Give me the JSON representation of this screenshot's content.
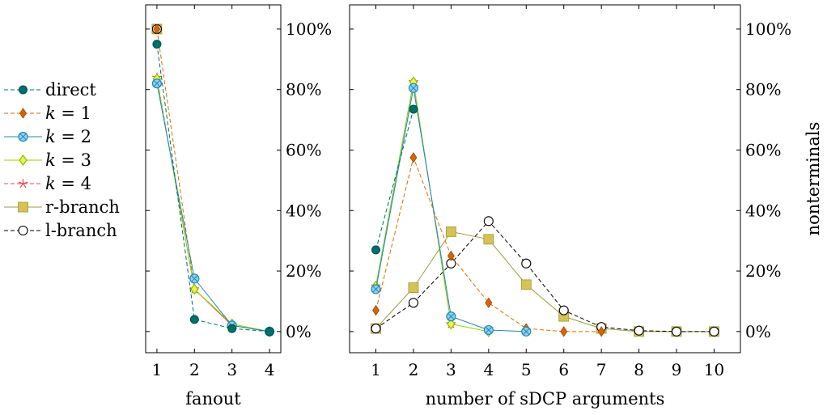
{
  "chart_data": [
    {
      "type": "line",
      "xlabel": "fanout",
      "ylabel": "",
      "x_ticks": [
        "1",
        "2",
        "3",
        "4"
      ],
      "y_ticks": [
        "0%",
        "20%",
        "40%",
        "60%",
        "80%",
        "100%"
      ],
      "xlim": [
        0.7,
        4.3
      ],
      "ylim": [
        -0.07,
        1.08
      ],
      "grid": false,
      "series": [
        {
          "name": "direct",
          "x": [
            1,
            2,
            3,
            4
          ],
          "y": [
            0.95,
            0.04,
            0.01,
            0.0
          ]
        },
        {
          "name": "k = 1",
          "x": [
            1,
            2,
            3,
            4
          ],
          "y": [
            1.0,
            0.14,
            0.02,
            0.0
          ]
        },
        {
          "name": "k = 2",
          "x": [
            1,
            2,
            3,
            4
          ],
          "y": [
            0.82,
            0.175,
            0.02,
            0.0
          ]
        },
        {
          "name": "k = 3",
          "x": [
            1,
            2,
            3,
            4
          ],
          "y": [
            0.835,
            0.14,
            0.025,
            0.0
          ]
        },
        {
          "name": "k = 4",
          "x": [
            1,
            2,
            3,
            4
          ],
          "y": [
            0.84,
            0.14,
            0.02,
            0.0
          ]
        },
        {
          "name": "r-branch",
          "x": [
            1
          ],
          "y": [
            1.0
          ]
        },
        {
          "name": "l-branch",
          "x": [
            1
          ],
          "y": [
            1.0
          ]
        }
      ]
    },
    {
      "type": "line",
      "xlabel": "number of sDCP arguments",
      "ylabel": "nonterminals",
      "x_ticks": [
        "1",
        "2",
        "3",
        "4",
        "5",
        "6",
        "7",
        "8",
        "9",
        "10"
      ],
      "y_ticks": [
        "0%",
        "20%",
        "40%",
        "60%",
        "80%",
        "100%"
      ],
      "xlim": [
        0.3,
        10.7
      ],
      "ylim": [
        -0.07,
        1.08
      ],
      "grid": false,
      "series": [
        {
          "name": "direct",
          "x": [
            1,
            2
          ],
          "y": [
            0.27,
            0.735
          ]
        },
        {
          "name": "k = 1",
          "x": [
            1,
            2,
            3,
            4,
            5,
            6,
            7
          ],
          "y": [
            0.07,
            0.575,
            0.25,
            0.095,
            0.01,
            0.0,
            0.0
          ]
        },
        {
          "name": "k = 2",
          "x": [
            1,
            2,
            3,
            4,
            5
          ],
          "y": [
            0.14,
            0.805,
            0.05,
            0.005,
            0.0
          ]
        },
        {
          "name": "k = 3",
          "x": [
            1,
            2,
            3,
            4
          ],
          "y": [
            0.15,
            0.825,
            0.025,
            0.0
          ]
        },
        {
          "name": "k = 4",
          "x": [
            1,
            2,
            3
          ],
          "y": [
            0.15,
            0.825,
            0.025
          ]
        },
        {
          "name": "r-branch",
          "x": [
            1,
            2,
            3,
            4,
            5,
            6,
            7,
            8,
            9,
            10
          ],
          "y": [
            0.01,
            0.145,
            0.33,
            0.305,
            0.155,
            0.05,
            0.01,
            0.0,
            0.0,
            0.0
          ]
        },
        {
          "name": "l-branch",
          "x": [
            1,
            2,
            3,
            4,
            5,
            6,
            7,
            8,
            9,
            10
          ],
          "y": [
            0.01,
            0.095,
            0.225,
            0.365,
            0.225,
            0.07,
            0.015,
            0.003,
            0.0,
            0.0
          ]
        }
      ]
    }
  ],
  "legend": {
    "placement": "left",
    "entries": [
      "direct",
      "k = 1",
      "k = 2",
      "k = 3",
      "k = 4",
      "r-branch",
      "l-branch"
    ]
  },
  "styles": {
    "direct": {
      "color": "#00706b",
      "marker": "circle-filled",
      "dash": true
    },
    "k = 1": {
      "color": "#e06a00",
      "marker": "diamond",
      "dash": true
    },
    "k = 2": {
      "color": "#1f87b8",
      "marker": "circle-otimes",
      "dash": false
    },
    "k = 3": {
      "color": "#8cd400",
      "marker": "diamond-yellow",
      "dash": false
    },
    "k = 4": {
      "color": "#e84a4a",
      "marker": "star",
      "dash": true
    },
    "r-branch": {
      "color": "#9a9a3a",
      "marker": "square",
      "dash": false
    },
    "l-branch": {
      "color": "#000000",
      "marker": "circle-open",
      "dash": true
    }
  }
}
